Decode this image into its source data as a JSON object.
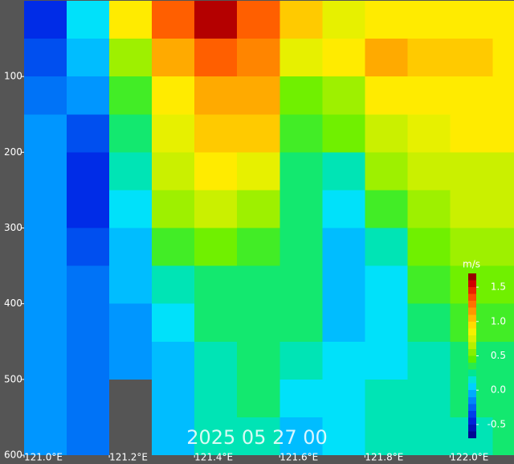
{
  "chart_data": {
    "type": "heatmap",
    "x": [
      121.05,
      121.15,
      121.25,
      121.35,
      121.45,
      121.55,
      121.65,
      121.75,
      121.85,
      121.95,
      122.05,
      122.15
    ],
    "y": [
      25,
      75,
      125,
      175,
      225,
      275,
      325,
      375,
      425,
      475,
      525,
      575
    ],
    "values": [
      [
        -0.4,
        0.1,
        0.9,
        1.3,
        1.6,
        1.3,
        1.0,
        0.8,
        0.9,
        0.9,
        0.9,
        0.9
      ],
      [
        -0.3,
        0.0,
        0.6,
        1.1,
        1.3,
        1.2,
        0.8,
        0.9,
        1.1,
        1.0,
        1.0,
        0.9
      ],
      [
        -0.2,
        -0.1,
        0.4,
        0.9,
        1.1,
        1.1,
        0.5,
        0.6,
        0.9,
        0.9,
        0.9,
        0.9
      ],
      [
        -0.1,
        -0.3,
        0.3,
        0.8,
        1.0,
        1.0,
        0.4,
        0.5,
        0.7,
        0.8,
        0.9,
        0.9
      ],
      [
        -0.1,
        -0.4,
        0.2,
        0.7,
        0.9,
        0.8,
        0.3,
        0.2,
        0.6,
        0.7,
        0.7,
        0.7
      ],
      [
        -0.1,
        -0.4,
        0.1,
        0.6,
        0.7,
        0.6,
        0.3,
        0.1,
        0.4,
        0.6,
        0.7,
        0.7
      ],
      [
        -0.1,
        -0.3,
        0.0,
        0.4,
        0.5,
        0.4,
        0.3,
        0.0,
        0.2,
        0.5,
        0.6,
        0.6
      ],
      [
        -0.1,
        -0.2,
        0.0,
        0.2,
        0.3,
        0.3,
        0.3,
        0.0,
        0.1,
        0.4,
        0.5,
        0.5
      ],
      [
        -0.1,
        -0.2,
        -0.1,
        0.1,
        0.3,
        0.3,
        0.3,
        0.0,
        0.1,
        0.3,
        0.4,
        0.4
      ],
      [
        -0.1,
        -0.2,
        -0.1,
        0.0,
        0.2,
        0.3,
        0.2,
        0.1,
        0.1,
        0.2,
        0.3,
        0.3
      ],
      [
        -0.1,
        -0.2,
        null,
        0.0,
        0.2,
        0.3,
        0.1,
        0.1,
        0.2,
        0.2,
        0.3,
        0.3
      ],
      [
        -0.1,
        -0.2,
        null,
        0.0,
        0.2,
        0.2,
        0.0,
        0.1,
        0.2,
        0.2,
        0.2,
        0.3
      ]
    ],
    "xlim": [
      121.0,
      122.15
    ],
    "xticks": [
      {
        "value": 121.0,
        "label": "121.0°E"
      },
      {
        "value": 121.2,
        "label": "121.2°E"
      },
      {
        "value": 121.4,
        "label": "121.4°E"
      },
      {
        "value": 121.6,
        "label": "121.6°E"
      },
      {
        "value": 121.8,
        "label": "121.8°E"
      },
      {
        "value": 122.0,
        "label": "122.0°E"
      }
    ],
    "ylim": [
      0,
      600
    ],
    "yticks": [
      100,
      200,
      300,
      400,
      500,
      600
    ],
    "colorbar": {
      "label": "m/s",
      "lim": [
        -0.7,
        1.7
      ],
      "ticks": [
        1.5,
        {
          "value": 1.0,
          "label": "1.0"
        },
        0.5,
        {
          "value": 0.0,
          "label": "0.0"
        },
        -0.5
      ]
    },
    "annotation": "2025 05 27 00"
  }
}
